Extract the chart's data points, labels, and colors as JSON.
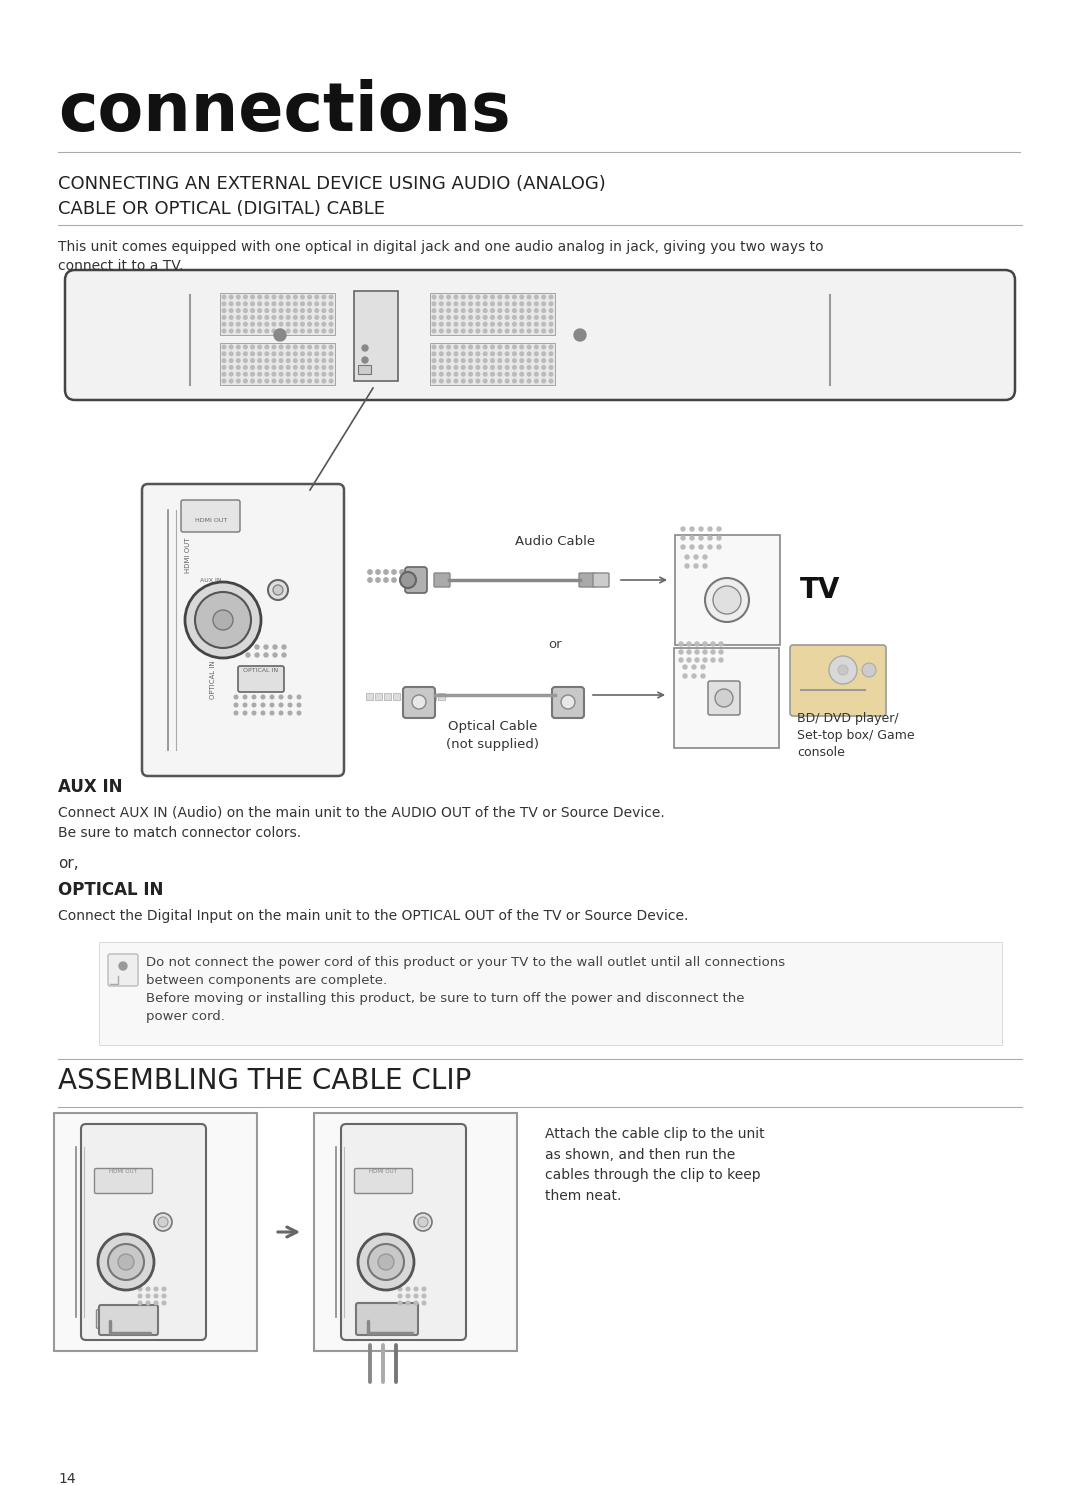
{
  "bg_color": "#ffffff",
  "page_num": "14",
  "title": "connections",
  "section1_heading_line1": "CONNECTING AN EXTERNAL DEVICE USING AUDIO (ANALOG)",
  "section1_heading_line2": "CABLE OR OPTICAL (DIGITAL) CABLE",
  "section1_body": "This unit comes equipped with one optical in digital jack and one audio analog in jack, giving you two ways to\nconnect it to a TV.",
  "aux_in_heading": "AUX IN",
  "aux_in_body": "Connect AUX IN (Audio) on the main unit to the AUDIO OUT of the TV or Source Device.\nBe sure to match connector colors.",
  "or_text": "or,",
  "optical_in_heading": "OPTICAL IN",
  "optical_in_body": "Connect the Digital Input on the main unit to the OPTICAL OUT of the TV or Source Device.",
  "note_body": "Do not connect the power cord of this product or your TV to the wall outlet until all connections\nbetween components are complete.\nBefore moving or installing this product, be sure to turn off the power and disconnect the\npower cord.",
  "section2_heading": "ASSEMBLING THE CABLE CLIP",
  "cable_clip_body": "Attach the cable clip to the unit\nas shown, and then run the\ncables through the clip to keep\nthem neat.",
  "audio_cable_label": "Audio Cable",
  "optical_cable_label": "Optical Cable\n(not supplied)",
  "tv_label": "TV",
  "bd_dvd_label": "BD/ DVD player/\nSet-top box/ Game\nconsole",
  "or_mid": "or"
}
